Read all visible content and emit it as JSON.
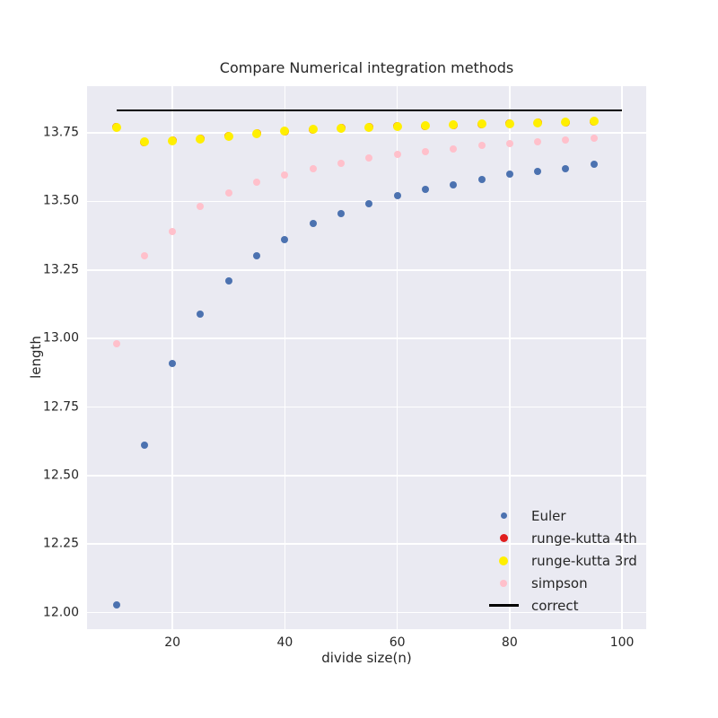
{
  "figure": {
    "background": "#ffffff",
    "plot_background": "#eaeaf2",
    "grid_color": "#ffffff",
    "text_color": "#262626"
  },
  "chart_data": {
    "type": "scatter",
    "title": "Compare Numerical integration methods",
    "xlabel": "divide size(n)",
    "ylabel": "length",
    "grid": true,
    "xlim": [
      4.8,
      104.3
    ],
    "ylim": [
      11.94,
      13.92
    ],
    "xticks": [
      20,
      40,
      60,
      80,
      100
    ],
    "xtick_labels": [
      "20",
      "40",
      "60",
      "80",
      "100"
    ],
    "yticks": [
      12.0,
      12.25,
      12.5,
      12.75,
      13.0,
      13.25,
      13.5,
      13.75
    ],
    "ytick_labels": [
      "12.00",
      "12.25",
      "12.50",
      "12.75",
      "13.00",
      "13.25",
      "13.50",
      "13.75"
    ],
    "x": [
      10,
      15,
      20,
      25,
      30,
      35,
      40,
      45,
      50,
      55,
      60,
      65,
      70,
      75,
      80,
      85,
      90,
      95
    ],
    "series": [
      {
        "name": "euler",
        "label": "Euler",
        "color": "#4C72B0",
        "marker": "dot",
        "size": 8,
        "values": [
          12.03,
          12.61,
          12.91,
          13.09,
          13.21,
          13.3,
          13.36,
          13.42,
          13.455,
          13.49,
          13.52,
          13.545,
          13.56,
          13.58,
          13.6,
          13.61,
          13.62,
          13.635
        ]
      },
      {
        "name": "runge-kutta-4th",
        "label": "runge-kutta 4th",
        "color": "#E01E1E",
        "marker": "dot",
        "size": 9,
        "values": [
          13.77,
          13.717,
          13.721,
          13.728,
          13.738,
          13.747,
          13.755,
          13.762,
          13.767,
          13.77,
          13.773,
          13.776,
          13.779,
          13.781,
          13.784,
          13.786,
          13.789,
          13.791
        ]
      },
      {
        "name": "runge-kutta-3rd",
        "label": "runge-kutta 3rd",
        "color": "#FFEF00",
        "marker": "dot",
        "size": 10,
        "values": [
          13.77,
          13.717,
          13.721,
          13.728,
          13.738,
          13.747,
          13.755,
          13.762,
          13.767,
          13.77,
          13.773,
          13.776,
          13.779,
          13.781,
          13.784,
          13.786,
          13.789,
          13.791
        ]
      },
      {
        "name": "simpson",
        "label": "simpson",
        "color": "#FFC0CB",
        "marker": "dot",
        "size": 8,
        "values": [
          12.98,
          13.3,
          13.39,
          13.48,
          13.53,
          13.57,
          13.595,
          13.62,
          13.64,
          13.657,
          13.671,
          13.681,
          13.692,
          13.703,
          13.71,
          13.717,
          13.725,
          13.731
        ]
      }
    ],
    "correct_line": {
      "label": "correct",
      "color": "#000000",
      "y": 13.832,
      "x_start": 10,
      "x_end": 100
    },
    "legend": {
      "position": "lower right",
      "items": [
        {
          "label": "Euler",
          "type": "dot",
          "color": "#4C72B0",
          "size": 7
        },
        {
          "label": "runge-kutta 4th",
          "type": "dot",
          "color": "#E01E1E",
          "size": 9
        },
        {
          "label": "runge-kutta 3rd",
          "type": "dot",
          "color": "#FFEF00",
          "size": 10
        },
        {
          "label": "simpson",
          "type": "dot",
          "color": "#FFC0CB",
          "size": 8
        },
        {
          "label": "correct",
          "type": "line",
          "color": "#000000"
        }
      ]
    }
  }
}
